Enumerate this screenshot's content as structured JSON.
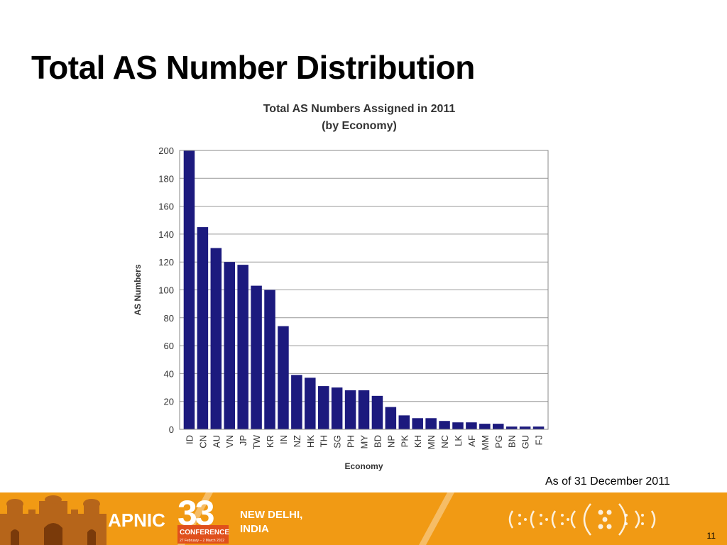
{
  "slide": {
    "title": "Total AS Number Distribution",
    "as_of": "As of 31 December 2011",
    "page_number": "11"
  },
  "footer": {
    "org": "APNIC",
    "conference_number": "33",
    "conference_label": "CONFERENCE",
    "conference_dates": "27 February – 2 March 2012",
    "location_line1": "NEW DELHI,",
    "location_line2": "INDIA",
    "bg_color": "#f19a14"
  },
  "chart_data": {
    "type": "bar",
    "title": "Total AS Numbers Assigned in 2011",
    "subtitle": "(by Economy)",
    "xlabel": "Economy",
    "ylabel": "AS Numbers",
    "ylim": [
      0,
      200
    ],
    "yticks": [
      0,
      20,
      40,
      60,
      80,
      100,
      120,
      140,
      160,
      180,
      200
    ],
    "grid": true,
    "bar_color": "#1c1a7e",
    "categories": [
      "ID",
      "CN",
      "AU",
      "VN",
      "JP",
      "TW",
      "KR",
      "IN",
      "NZ",
      "HK",
      "TH",
      "SG",
      "PH",
      "MY",
      "BD",
      "NP",
      "PK",
      "KH",
      "MN",
      "NC",
      "LK",
      "AF",
      "MM",
      "PG",
      "BN",
      "GU",
      "FJ"
    ],
    "values": [
      200,
      145,
      130,
      120,
      118,
      103,
      100,
      74,
      39,
      37,
      31,
      30,
      28,
      28,
      24,
      16,
      10,
      8,
      8,
      6,
      5,
      5,
      4,
      4,
      2,
      2,
      2
    ]
  }
}
